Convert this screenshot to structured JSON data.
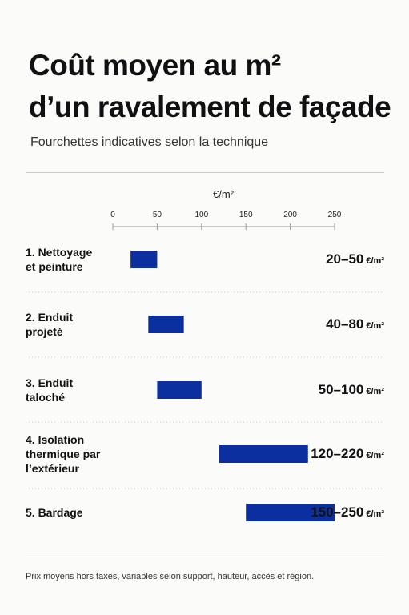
{
  "title": "Coût moyen au m²\nd’un ravalement de façade",
  "subtitle": "Fourchettes indicatives selon la technique",
  "footnote": "Prix moyens hors taxes, variables selon support, hauteur, accès et région.",
  "chart_data": {
    "type": "range-bar",
    "axis_label": "€/m²",
    "unit": "€/m²",
    "categories": [
      "1. Nettoyage\net peinture",
      "2. Enduit\nprojeté",
      "3. Enduit\ntaloché",
      "4. Isolation\nthermique par\nl’extérieur",
      "5. Bardage"
    ],
    "low": [
      20,
      40,
      50,
      120,
      150
    ],
    "high": [
      50,
      80,
      100,
      220,
      250
    ],
    "value_labels": [
      "20–50",
      "40–80",
      "50–100",
      "120–220",
      "150–250"
    ],
    "color": "#0b2f9f",
    "xlim": [
      0,
      250
    ],
    "xticks": [
      0,
      50,
      100,
      150,
      200,
      250
    ]
  }
}
